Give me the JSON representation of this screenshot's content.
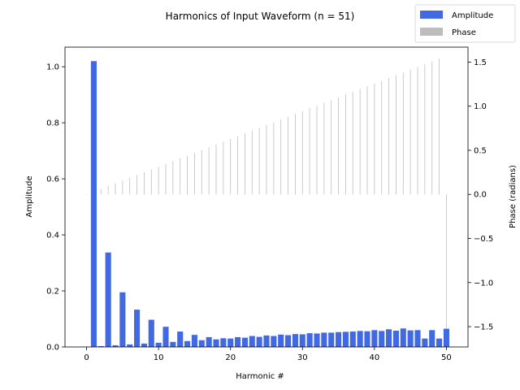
{
  "chart_data": {
    "type": "bar",
    "title": "Harmonics of Input Waveform (n = 51)",
    "xlabel": "Harmonic #",
    "ylabel": "Amplitude",
    "ylabel_right": "Phase (radians)",
    "xlim": [
      -3,
      53
    ],
    "ylim": [
      0,
      1.07
    ],
    "ylim_right": [
      -1.73,
      1.67
    ],
    "x_ticks": [
      0,
      10,
      20,
      30,
      40,
      50
    ],
    "y_ticks": [
      0.0,
      0.2,
      0.4,
      0.6,
      0.8,
      1.0
    ],
    "y_tick_labels": [
      "0.0",
      "0.2",
      "0.4",
      "0.6",
      "0.8",
      "1.0"
    ],
    "y_right_ticks": [
      -1.5,
      -1.0,
      -0.5,
      0.0,
      0.5,
      1.0,
      1.5
    ],
    "y_right_tick_labels": [
      "−1.5",
      "−1.0",
      "−0.5",
      "0.0",
      "0.5",
      "1.0",
      "1.5"
    ],
    "grid": false,
    "legend_position": "top-right",
    "colors": {
      "amplitude": "#4169e1",
      "phase": "#bdbdbd"
    },
    "series": [
      {
        "name": "Amplitude",
        "axis": "left",
        "x": [
          0,
          1,
          2,
          3,
          4,
          5,
          6,
          7,
          8,
          9,
          10,
          11,
          12,
          13,
          14,
          15,
          16,
          17,
          18,
          19,
          20,
          21,
          22,
          23,
          24,
          25,
          26,
          27,
          28,
          29,
          30,
          31,
          32,
          33,
          34,
          35,
          36,
          37,
          38,
          39,
          40,
          41,
          42,
          43,
          44,
          45,
          46,
          47,
          48,
          49,
          50
        ],
        "values": [
          0.0,
          1.02,
          0.003,
          0.337,
          0.006,
          0.195,
          0.009,
          0.133,
          0.012,
          0.097,
          0.015,
          0.072,
          0.018,
          0.055,
          0.021,
          0.043,
          0.024,
          0.035,
          0.027,
          0.031,
          0.03,
          0.035,
          0.033,
          0.039,
          0.036,
          0.041,
          0.039,
          0.044,
          0.042,
          0.046,
          0.045,
          0.049,
          0.048,
          0.051,
          0.051,
          0.053,
          0.054,
          0.055,
          0.057,
          0.056,
          0.06,
          0.057,
          0.063,
          0.058,
          0.066,
          0.059,
          0.06,
          0.03,
          0.06,
          0.03,
          0.065
        ]
      },
      {
        "name": "Phase",
        "axis": "right",
        "x": [
          0,
          1,
          2,
          3,
          4,
          5,
          6,
          7,
          8,
          9,
          10,
          11,
          12,
          13,
          14,
          15,
          16,
          17,
          18,
          19,
          20,
          21,
          22,
          23,
          24,
          25,
          26,
          27,
          28,
          29,
          30,
          31,
          32,
          33,
          34,
          35,
          36,
          37,
          38,
          39,
          40,
          41,
          42,
          43,
          44,
          45,
          46,
          47,
          48,
          49,
          50
        ],
        "values": [
          0.0,
          0.031,
          0.063,
          0.094,
          0.126,
          0.157,
          0.188,
          0.22,
          0.251,
          0.283,
          0.314,
          0.346,
          0.377,
          0.408,
          0.44,
          0.471,
          0.503,
          0.534,
          0.565,
          0.597,
          0.628,
          0.66,
          0.691,
          0.723,
          0.754,
          0.785,
          0.817,
          0.848,
          0.88,
          0.911,
          0.942,
          0.974,
          1.005,
          1.037,
          1.068,
          1.1,
          1.131,
          1.162,
          1.194,
          1.225,
          1.257,
          1.288,
          1.319,
          1.351,
          1.382,
          1.414,
          1.445,
          1.476,
          1.508,
          1.539,
          -1.571
        ]
      }
    ]
  }
}
